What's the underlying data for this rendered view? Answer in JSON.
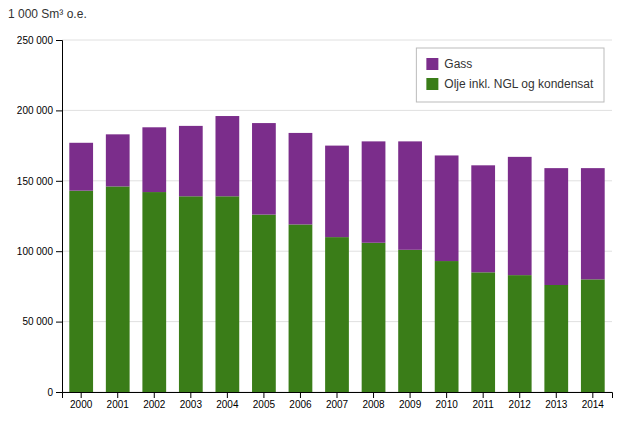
{
  "chart_data": {
    "type": "bar",
    "stacked": true,
    "ylabel": "1 000 Sm³ o.e.",
    "categories": [
      "2000",
      "2001",
      "2002",
      "2003",
      "2004",
      "2005",
      "2006",
      "2007",
      "2008",
      "2009",
      "2010",
      "2011",
      "2012",
      "2013",
      "2014"
    ],
    "series": [
      {
        "name": "Olje inkl. NGL og kondensat",
        "color": "#3a7d18",
        "values": [
          143000,
          146000,
          142000,
          139000,
          139000,
          126000,
          119000,
          110000,
          106000,
          101000,
          93000,
          85000,
          83000,
          76000,
          80000
        ]
      },
      {
        "name": "Gass",
        "color": "#7b2d8b",
        "values": [
          34000,
          37000,
          46000,
          50000,
          57000,
          65000,
          65000,
          65000,
          72000,
          77000,
          75000,
          76000,
          84000,
          83000,
          79000
        ]
      }
    ],
    "ylim": [
      0,
      250000
    ],
    "yticks": [
      0,
      {
        "value": 50000,
        "label": "50 000"
      },
      {
        "value": 100000,
        "label": "100 000"
      },
      {
        "value": 150000,
        "label": "150 000"
      },
      {
        "value": 200000,
        "label": "200 000"
      },
      {
        "value": 250000,
        "label": "250 000"
      }
    ],
    "grid": true,
    "legend": "upper right"
  }
}
